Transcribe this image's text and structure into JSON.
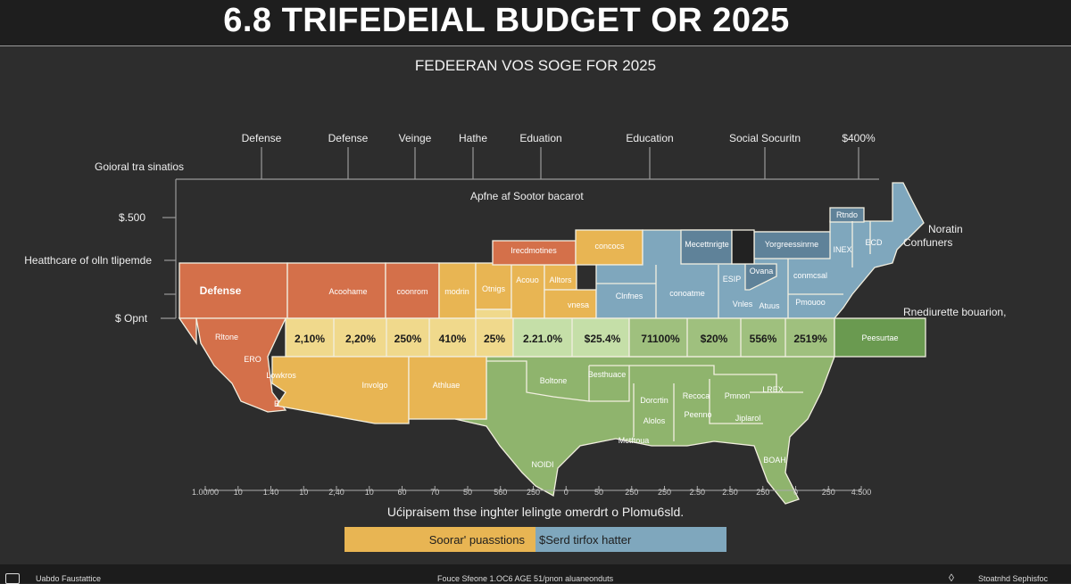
{
  "header": {
    "title": "6.8 TRIFEDEIAL BUDGET OR 2025",
    "subtitle": "FEDEERAN VOS SOGE FOR 2025"
  },
  "chart_data": {
    "type": "heatmap",
    "title": "6.8 TRIFEDEIAL BUDGET OR 2025",
    "subtitle": "FEDEERAN VOS SOGE FOR 2025",
    "inner_title": "Apfne af Sootor bacarot",
    "top_axis_labels": [
      "Defense",
      "Defense",
      "Veinge",
      "Hathe",
      "Eduation",
      "Education",
      "Social Socuritn",
      "$400%"
    ],
    "left_axis_title": "Goioral tra sinatios",
    "left_axis_labels": [
      "$.500",
      "Heatthcare of olln tlipemde",
      "$ Opnt"
    ],
    "bottom_axis_ticks": [
      "1.00/00",
      "10",
      "1.40",
      "10",
      "2,40",
      "10",
      "60",
      "70",
      "50",
      "560",
      "250",
      "0",
      "50",
      "250",
      "250",
      "2.50",
      "2.50",
      "250",
      "0",
      "250",
      "4.500"
    ],
    "regions": {
      "west": [
        "Defense",
        "Acoohame",
        "coonrom",
        "modrin",
        "Otnigs",
        "Acouo",
        "Alltors",
        "vnesa",
        "Irecdmotines",
        "concocs",
        "Rltone",
        "ERO",
        "Lowkros",
        "B",
        "Involgo",
        "Athluae"
      ],
      "northeast": [
        "Mecettnrigte",
        "Yorgreessinrne",
        "Rtndo",
        "INEX",
        "ECD",
        "Ovana",
        "conmcsal",
        "Clnfnes",
        "conoatme",
        "ESIP",
        "Vnles",
        "Atuus",
        "Pmouoo"
      ],
      "south": [
        "Boltone",
        "Besthuace",
        "Dorcrtin",
        "Recoca",
        "Pmnon",
        "LREX",
        "Peenno",
        "Jiplarol",
        "Alolos",
        "Mctftoua",
        "NOIDI",
        "BOAH",
        "Peesurtae"
      ]
    },
    "percent_row": [
      "2,10%",
      "2,20%",
      "250%",
      "410%",
      "25%",
      "2.21.0%",
      "$25.4%",
      "71100%",
      "$20%",
      "556%",
      "2519%"
    ],
    "annotations": [
      "Noratin",
      "Confuners",
      "Rnediurette bouarion,"
    ],
    "colors": {
      "orange": "#d4704a",
      "yellow": "#e8b553",
      "light_yellow": "#f0d98c",
      "blue": "#7fa7bd",
      "dark_blue": "#5f8299",
      "light_green": "#c5dfa8",
      "green": "#8fb46d",
      "dark_green": "#6a9a50"
    }
  },
  "note": "Ućipraisem thse inghter lelingte omerdrt o Plomu6sld.",
  "legend": [
    "Soorar' puasstions",
    "$Serd tirfox hatter"
  ],
  "footer": {
    "left": "Uabdo Faustattice",
    "center": "Fouce Sfeone 1.OC6 AGE 51/pnon aluaneonduts",
    "right": "Stoatnhd Sephisfoc"
  }
}
